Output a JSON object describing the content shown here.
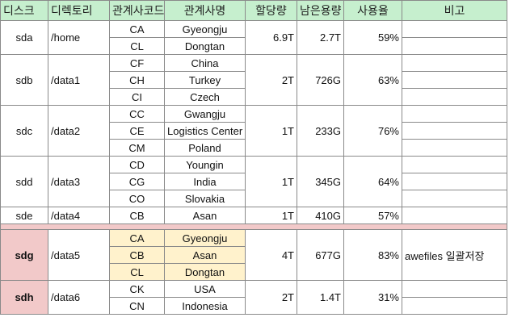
{
  "headers": {
    "disk": "디스크",
    "directory": "디렉토리",
    "code": "관계사코드",
    "name": "관계사명",
    "alloc": "할당량",
    "remain": "남은용량",
    "usage": "사용율",
    "note": "비고"
  },
  "groups": [
    {
      "disk": "sda",
      "dir": "/home",
      "alloc": "6.9T",
      "remain": "2.7T",
      "usage": "59%",
      "note": "",
      "rows": [
        {
          "code": "CA",
          "name": "Gyeongju"
        },
        {
          "code": "CL",
          "name": "Dongtan"
        }
      ]
    },
    {
      "disk": "sdb",
      "dir": "/data1",
      "alloc": "2T",
      "remain": "726G",
      "usage": "63%",
      "note": "",
      "rows": [
        {
          "code": "CF",
          "name": "China"
        },
        {
          "code": "CH",
          "name": "Turkey"
        },
        {
          "code": "CI",
          "name": "Czech"
        }
      ]
    },
    {
      "disk": "sdc",
      "dir": "/data2",
      "alloc": "1T",
      "remain": "233G",
      "usage": "76%",
      "note": "",
      "rows": [
        {
          "code": "CC",
          "name": "Gwangju"
        },
        {
          "code": "CE",
          "name": "Logistics Center"
        },
        {
          "code": "CM",
          "name": "Poland"
        }
      ]
    },
    {
      "disk": "sdd",
      "dir": "/data3",
      "alloc": "1T",
      "remain": "345G",
      "usage": "64%",
      "note": "",
      "rows": [
        {
          "code": "CD",
          "name": "Youngin"
        },
        {
          "code": "CG",
          "name": "India"
        },
        {
          "code": "CO",
          "name": "Slovakia"
        }
      ]
    },
    {
      "disk": "sde",
      "dir": "/data4",
      "alloc": "1T",
      "remain": "410G",
      "usage": "57%",
      "note": "",
      "rows": [
        {
          "code": "CB",
          "name": "Asan"
        }
      ]
    },
    {
      "disk": "sdg",
      "dir": "/data5",
      "alloc": "4T",
      "remain": "677G",
      "usage": "83%",
      "note": "awefiles 일괄저장",
      "rows": [
        {
          "code": "CA",
          "name": "Gyeongju"
        },
        {
          "code": "CB",
          "name": "Asan"
        },
        {
          "code": "CL",
          "name": "Dongtan"
        }
      ]
    },
    {
      "disk": "sdh",
      "dir": "/data6",
      "alloc": "2T",
      "remain": "1.4T",
      "usage": "31%",
      "note": "",
      "rows": [
        {
          "code": "CK",
          "name": "USA"
        },
        {
          "code": "CN",
          "name": "Indonesia"
        }
      ]
    }
  ],
  "colors": {
    "header_bg": "#c6efce",
    "highlight_red": "#f2c9c9",
    "highlight_yellow": "#fff2cc",
    "grid": "#8a8a8a"
  }
}
